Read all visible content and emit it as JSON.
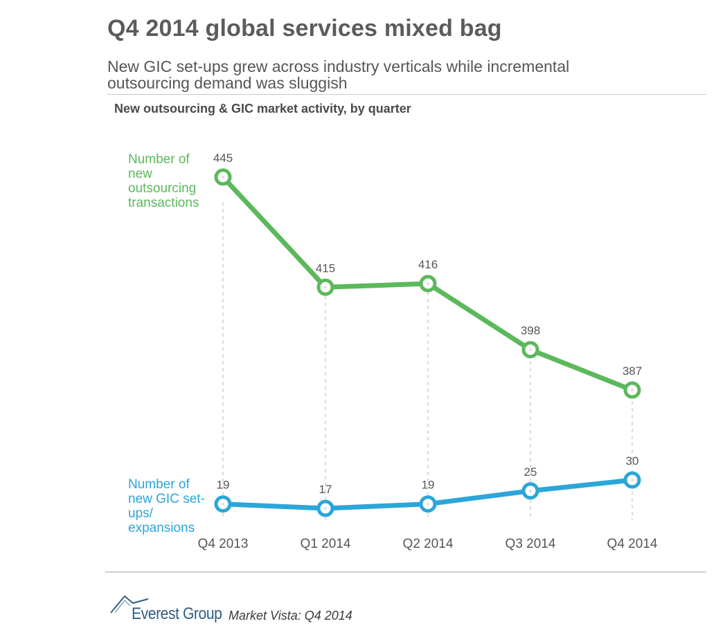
{
  "header": {
    "title": "Q4 2014 global services mixed bag",
    "subtitle": "New GIC set-ups grew across industry verticals while incremental outsourcing demand was sluggish"
  },
  "chart_heading": "New outsourcing & GIC market activity, by quarter",
  "chart_data": {
    "type": "line",
    "title": "New outsourcing & GIC market activity, by quarter",
    "categories": [
      "Q4 2013",
      "Q1 2014",
      "Q2 2014",
      "Q3 2014",
      "Q4 2014"
    ],
    "series": [
      {
        "name": "Number of new outsourcing transactions",
        "label_lines": "Number of\nnew\noutsourcing\ntransactions",
        "values": [
          445,
          415,
          416,
          398,
          387
        ],
        "color": "#5cb85c"
      },
      {
        "name": "Number of new GIC set-ups/ expansions",
        "label_lines": "Number of\nnew GIC set-\nups/\nexpansions",
        "values": [
          19,
          17,
          19,
          25,
          30
        ],
        "color": "#2ba6d9"
      }
    ],
    "xlabel": "",
    "ylabel": "",
    "data_labels": true,
    "grid": "vertical dashed guides",
    "legend": "inline labels left"
  },
  "footer": {
    "logo_text": "Everest Group",
    "source_text": "Market Vista: Q4 2014",
    "logo_color": "#2f5e84"
  }
}
